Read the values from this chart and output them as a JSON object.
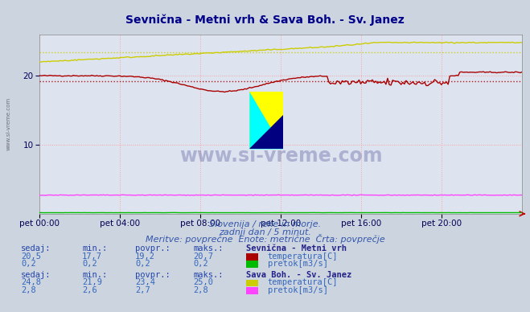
{
  "title": "Sevnična - Metni vrh & Sava Boh. - Sv. Janez",
  "bg_color": "#ccd4e0",
  "plot_bg_color": "#dde4f0",
  "grid_color": "#ff9999",
  "xlabel_ticks": [
    "pet 00:00",
    "pet 04:00",
    "pet 08:00",
    "pet 12:00",
    "pet 16:00",
    "pet 20:00"
  ],
  "ylim": [
    0,
    26
  ],
  "yticks": [
    10,
    20
  ],
  "n_points": 288,
  "sevnica_temp_avg": 19.2,
  "sava_temp_avg": 23.4,
  "sevnica_temp_color": "#aa0000",
  "sevnica_flow_color": "#00bb00",
  "sava_temp_color": "#cccc00",
  "sava_flow_color": "#ff44ff",
  "title_color": "#000088",
  "tick_color": "#000055",
  "watermark": "www.si-vreme.com",
  "subtitle1": "Slovenija / reke in morje.",
  "subtitle2": "zadnji dan / 5 minut.",
  "subtitle3": "Meritve: povprečne  Enote: metrične  Črta: povprečje",
  "station1_name": "Sevnična - Metni vrh",
  "station2_name": "Sava Boh. - Sv. Janez",
  "label_temp": "temperatura[C]",
  "label_flow": "pretok[m3/s]",
  "s1_sedaj_temp": "20,5",
  "s1_min_temp": "17,7",
  "s1_avg_temp": "19,2",
  "s1_max_temp": "20,7",
  "s1_sedaj_flow": "0,2",
  "s1_min_flow": "0,2",
  "s1_avg_flow": "0,2",
  "s1_max_flow": "0,2",
  "s2_sedaj_temp": "24,8",
  "s2_min_temp": "21,9",
  "s2_avg_temp": "23,4",
  "s2_max_temp": "25,0",
  "s2_sedaj_flow": "2,8",
  "s2_min_flow": "2,6",
  "s2_avg_flow": "2,7",
  "s2_max_flow": "2,8"
}
